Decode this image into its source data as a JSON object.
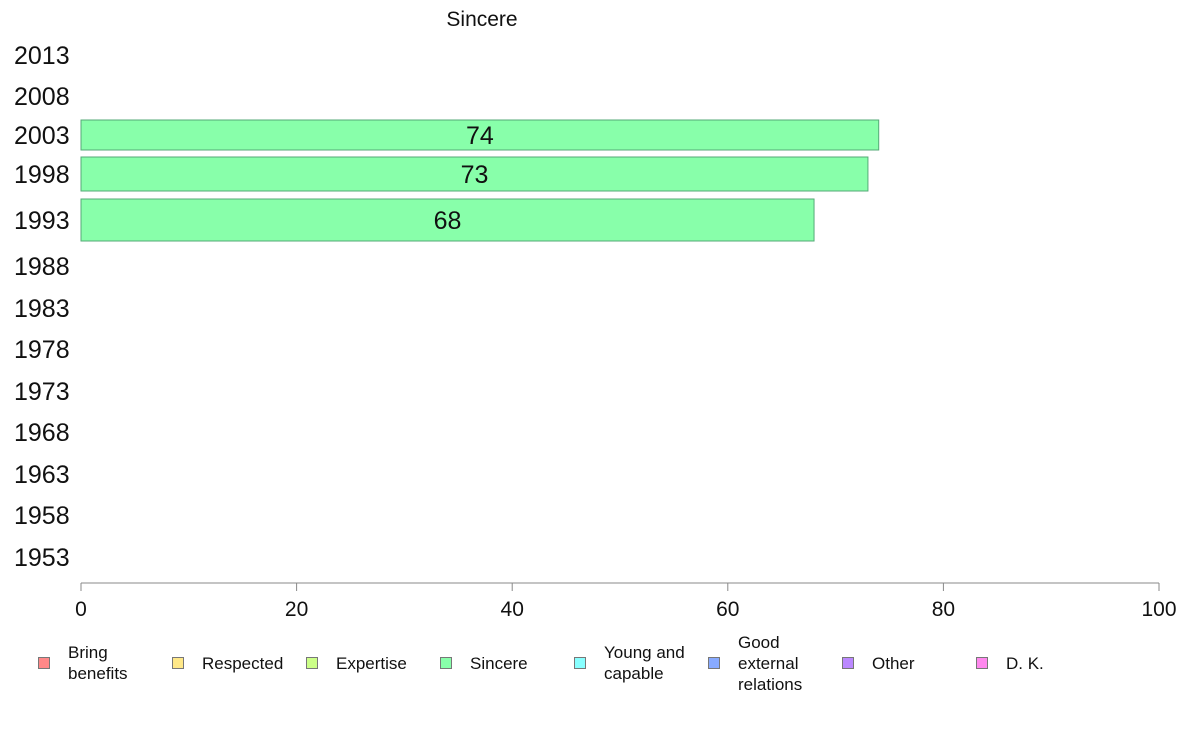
{
  "chart_data": {
    "type": "bar",
    "orientation": "horizontal",
    "title": "Sincere",
    "categories": [
      "2013",
      "2008",
      "2003",
      "1998",
      "1993",
      "1988",
      "1983",
      "1978",
      "1973",
      "1968",
      "1963",
      "1958",
      "1953"
    ],
    "series": [
      {
        "name": "Sincere",
        "color": "#88ffaa",
        "values": [
          null,
          null,
          74,
          73,
          68,
          null,
          null,
          null,
          null,
          null,
          null,
          null,
          null
        ],
        "data_labels": [
          "",
          "",
          "74",
          "73",
          "68",
          "",
          "",
          "",
          "",
          "",
          "",
          "",
          ""
        ]
      }
    ],
    "xlim": [
      0,
      100
    ],
    "xticks": [
      "0",
      "20",
      "40",
      "60",
      "80",
      "100"
    ],
    "grid": false,
    "legend_position": "bottom",
    "legend": [
      {
        "label": "Bring\nbenefits",
        "color": "#ff8888"
      },
      {
        "label": "Respected",
        "color": "#ffe888"
      },
      {
        "label": "Expertise",
        "color": "#ccff88"
      },
      {
        "label": "Sincere",
        "color": "#88ffaa"
      },
      {
        "label": "Young and\ncapable",
        "color": "#88ffff"
      },
      {
        "label": "Good\nexternal\nrelations",
        "color": "#88aaff"
      },
      {
        "label": "Other",
        "color": "#bb88ff"
      },
      {
        "label": "D. K.",
        "color": "#ff88ee"
      }
    ]
  }
}
